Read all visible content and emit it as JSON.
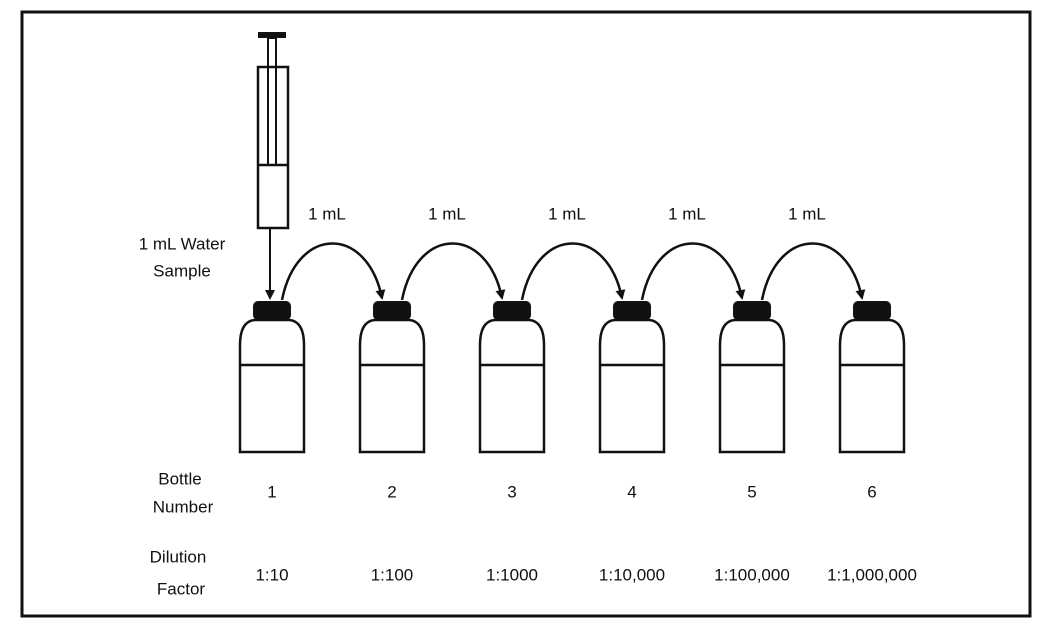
{
  "sample_label": [
    "1 mL Water",
    "Sample"
  ],
  "transfers": [
    "1 mL",
    "1 mL",
    "1 mL",
    "1 mL",
    "1 mL"
  ],
  "bottle_row_label": [
    "Bottle",
    "Number"
  ],
  "dilution_row_label": [
    "Dilution",
    "Factor"
  ],
  "bottles": [
    {
      "number": "1",
      "dilution": "1:10"
    },
    {
      "number": "2",
      "dilution": "1:100"
    },
    {
      "number": "3",
      "dilution": "1:1000"
    },
    {
      "number": "4",
      "dilution": "1:10,000"
    },
    {
      "number": "5",
      "dilution": "1:100,000"
    },
    {
      "number": "6",
      "dilution": "1:1,000,000"
    }
  ]
}
